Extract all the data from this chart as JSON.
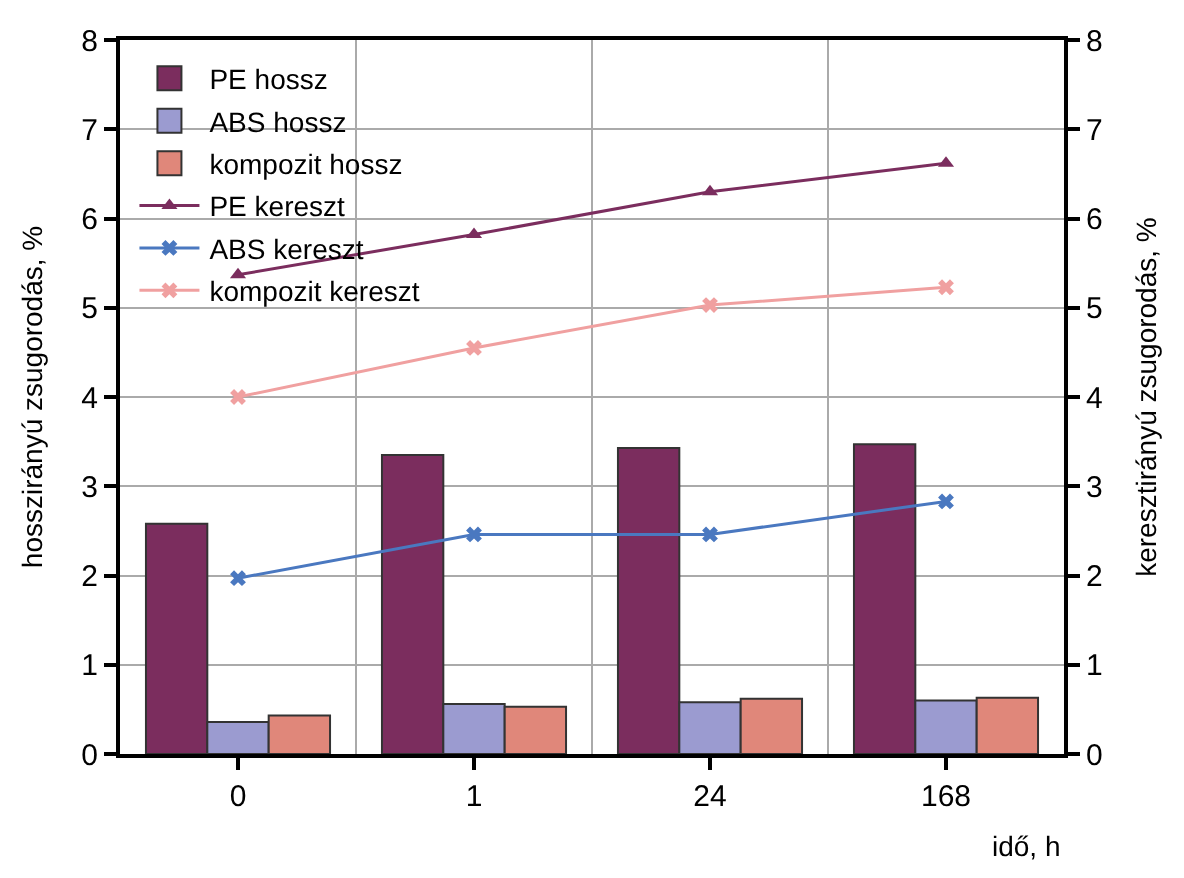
{
  "chart_data": {
    "type": "bar",
    "categories": [
      "0",
      "1",
      "24",
      "168"
    ],
    "xlabel": "idő, h",
    "ylabel": "hosszirányú zsugorodás, %",
    "y2label": "keresztirányú zsugorodás, %",
    "ylim": [
      0,
      8
    ],
    "yticks": [
      0,
      1,
      2,
      3,
      4,
      5,
      6,
      7,
      8
    ],
    "y2lim": [
      0,
      8
    ],
    "y2ticks": [
      0,
      1,
      2,
      3,
      4,
      5,
      6,
      7,
      8
    ],
    "grid": true,
    "legend": "top left",
    "series": [
      {
        "name": "PE hossz",
        "color": "#7b2d5e",
        "values": [
          2.58,
          3.35,
          3.43,
          3.47
        ]
      },
      {
        "name": "ABS hossz",
        "color": "#9b9bd0",
        "values": [
          0.36,
          0.56,
          0.58,
          0.6
        ]
      },
      {
        "name": "kompozit hossz",
        "color": "#e0877a",
        "values": [
          0.43,
          0.53,
          0.62,
          0.63
        ]
      },
      {
        "name": "PE kereszt",
        "type": "line",
        "axis": "y2",
        "marker": "triangle",
        "color": "#7b2d5e",
        "values": [
          5.37,
          5.82,
          6.3,
          6.62
        ]
      },
      {
        "name": "ABS kereszt",
        "type": "line",
        "axis": "y2",
        "marker": "cross",
        "color": "#4a78c0",
        "values": [
          1.97,
          2.46,
          2.46,
          2.83
        ]
      },
      {
        "name": "kompozit kereszt",
        "type": "line",
        "axis": "y2",
        "marker": "cross",
        "color": "#f0a0a0",
        "values": [
          4.0,
          4.55,
          5.03,
          5.23
        ]
      }
    ]
  }
}
